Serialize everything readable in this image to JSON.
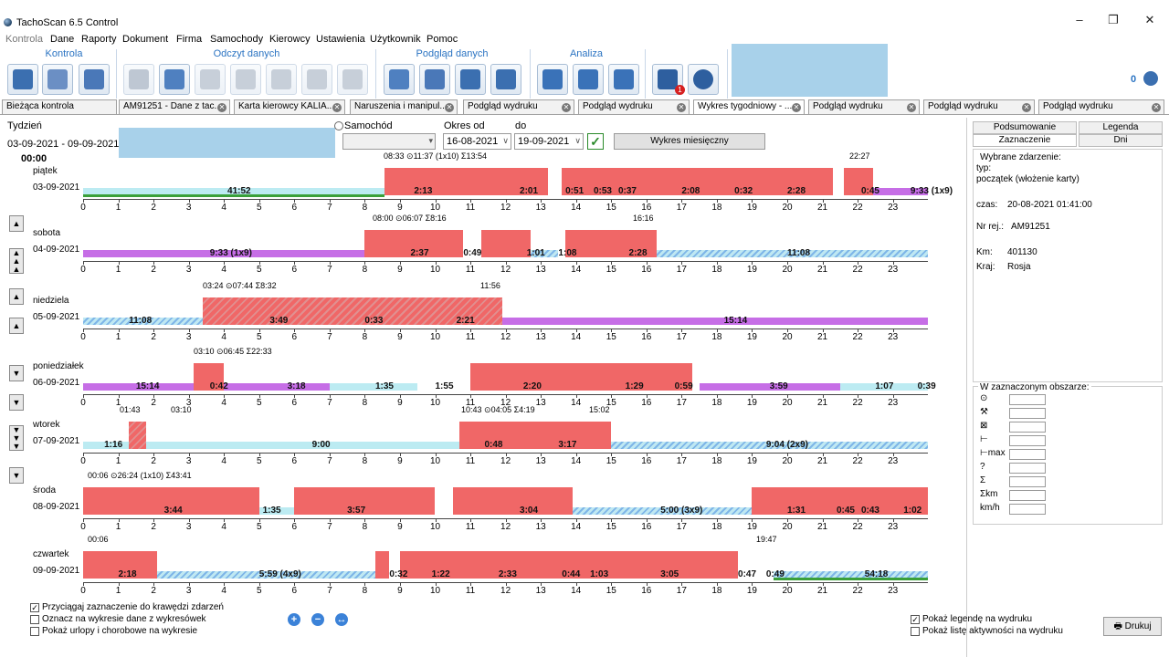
{
  "window": {
    "title": "TachoScan 6.5 Control"
  },
  "menu": [
    "Kontrola",
    "Dane",
    "Raporty",
    "Dokument",
    "Firma",
    "Samochody",
    "Kierowcy",
    "Ustawienia",
    "Użytkownik",
    "Pomoc"
  ],
  "ribbon": {
    "groups": [
      "Kontrola",
      "Odczyt danych",
      "Podgląd danych",
      "Analiza"
    ],
    "badge": "1",
    "counter": "0"
  },
  "tabs": [
    "Bieżąca kontrola",
    "AM91251 - Dane z tac...",
    "Karta kierowcy KALIA...",
    "Naruszenia i manipul...",
    "Podgląd wydruku",
    "Podgląd wydruku",
    "Wykres tygodniowy - ...",
    "Podgląd wydruku",
    "Podgląd wydruku",
    "Podgląd wydruku"
  ],
  "filters": {
    "week_label": "Tydzień",
    "week_range": "03-09-2021 - 09-09-2021",
    "vehicle_label": "Samochód",
    "period_from_label": "Okres od",
    "period_from": "16-08-2021",
    "period_to_label": "do",
    "period_to": "19-09-2021",
    "monthly_button": "Wykres miesięczny",
    "time": "00:00"
  },
  "hours": [
    "0",
    "1",
    "2",
    "3",
    "4",
    "5",
    "6",
    "7",
    "8",
    "9",
    "10",
    "11",
    "12",
    "13",
    "14",
    "15",
    "16",
    "17",
    "18",
    "19",
    "20",
    "21",
    "22",
    "23"
  ],
  "days": [
    {
      "name": "piątek",
      "date": "03-09-2021",
      "header": "08:33 ⊙11:37 (1x10) Σ13:54",
      "end": "22:27",
      "labels": [
        "41:52",
        "2:13",
        "2:01",
        "0:51",
        "0:53",
        "0:37",
        "2:08",
        "0:32",
        "2:28",
        "0:45",
        "9:33 (1x9)"
      ]
    },
    {
      "name": "sobota",
      "date": "04-09-2021",
      "header": "08:00 ⊙06:07 Σ8:16",
      "end": "16:16",
      "labels": [
        "9:33 (1x9)",
        "2:37",
        "0:49",
        "1:01",
        "1:08",
        "2:28",
        "11:08"
      ]
    },
    {
      "name": "niedziela",
      "date": "05-09-2021",
      "header": "03:24 ⊙07:44 Σ8:32",
      "end": "11:56",
      "labels": [
        "11:08",
        "3:49",
        "0:33",
        "2:21",
        "15:14"
      ]
    },
    {
      "name": "poniedziałek",
      "date": "06-09-2021",
      "header": "03:10 ⊙06:45 Σ22:33",
      "end": "",
      "labels": [
        "15:14",
        "0:42",
        "3:18",
        "1:35",
        "1:55",
        "2:20",
        "1:29",
        "0:59",
        "3:59",
        "1:07",
        "0:39"
      ]
    },
    {
      "name": "wtorek",
      "date": "07-09-2021",
      "header": "10:43 ⊙04:05 Σ4:19",
      "end": "15:02",
      "labels": [
        "1:16",
        "9:00",
        "0:48",
        "3:17",
        "9:04 (2x9)"
      ],
      "extra": [
        "01:43",
        "03:10"
      ]
    },
    {
      "name": "środa",
      "date": "08-09-2021",
      "header": "00:06 ⊙26:24 (1x10) Σ43:41",
      "end": "",
      "labels": [
        "3:44",
        "1:35",
        "3:57",
        "3:04",
        "5:00 (3x9)",
        "1:31",
        "0:45",
        "0:43",
        "1:02"
      ]
    },
    {
      "name": "czwartek",
      "date": "09-09-2021",
      "header": "00:06",
      "end": "19:47",
      "labels": [
        "2:18",
        "5:59 (4x9)",
        "0:32",
        "1:22",
        "2:33",
        "0:44",
        "1:03",
        "3:05",
        "0:47",
        "0:49",
        "54:18"
      ]
    }
  ],
  "right_panel": {
    "tabs": [
      "Podsumowanie",
      "Legenda",
      "Zaznaczenie",
      "Dni"
    ],
    "selected_title": "Wybrane zdarzenie:",
    "type_label": "typ:",
    "type_value": "początek (włożenie karty)",
    "time_label": "czas:",
    "time_value": "20-08-2021 01:41:00",
    "reg_label": "Nr rej.:",
    "reg_value": "AM91251",
    "km_label": "Km:",
    "km_value": "401130",
    "country_label": "Kraj:",
    "country_value": "Rosja",
    "area_title": "W zaznaczonym obszarze:",
    "rows": [
      "⊙",
      "⚒",
      "⊠",
      "⊢",
      "⊢max",
      "?",
      "Σ",
      "Σkm",
      "km/h"
    ]
  },
  "bottom": {
    "snap": "Przyciągaj zaznaczenie do krawędzi zdarzeń",
    "mark_data": "Oznacz na wykresie dane z wykresówek",
    "show_leave": "Pokaż urlopy i chorobowe na wykresie",
    "legend_print": "Pokaż legendę na wydruku",
    "activity_print": "Pokaż listę aktywności na wydruku",
    "print_button": "Drukuj"
  }
}
